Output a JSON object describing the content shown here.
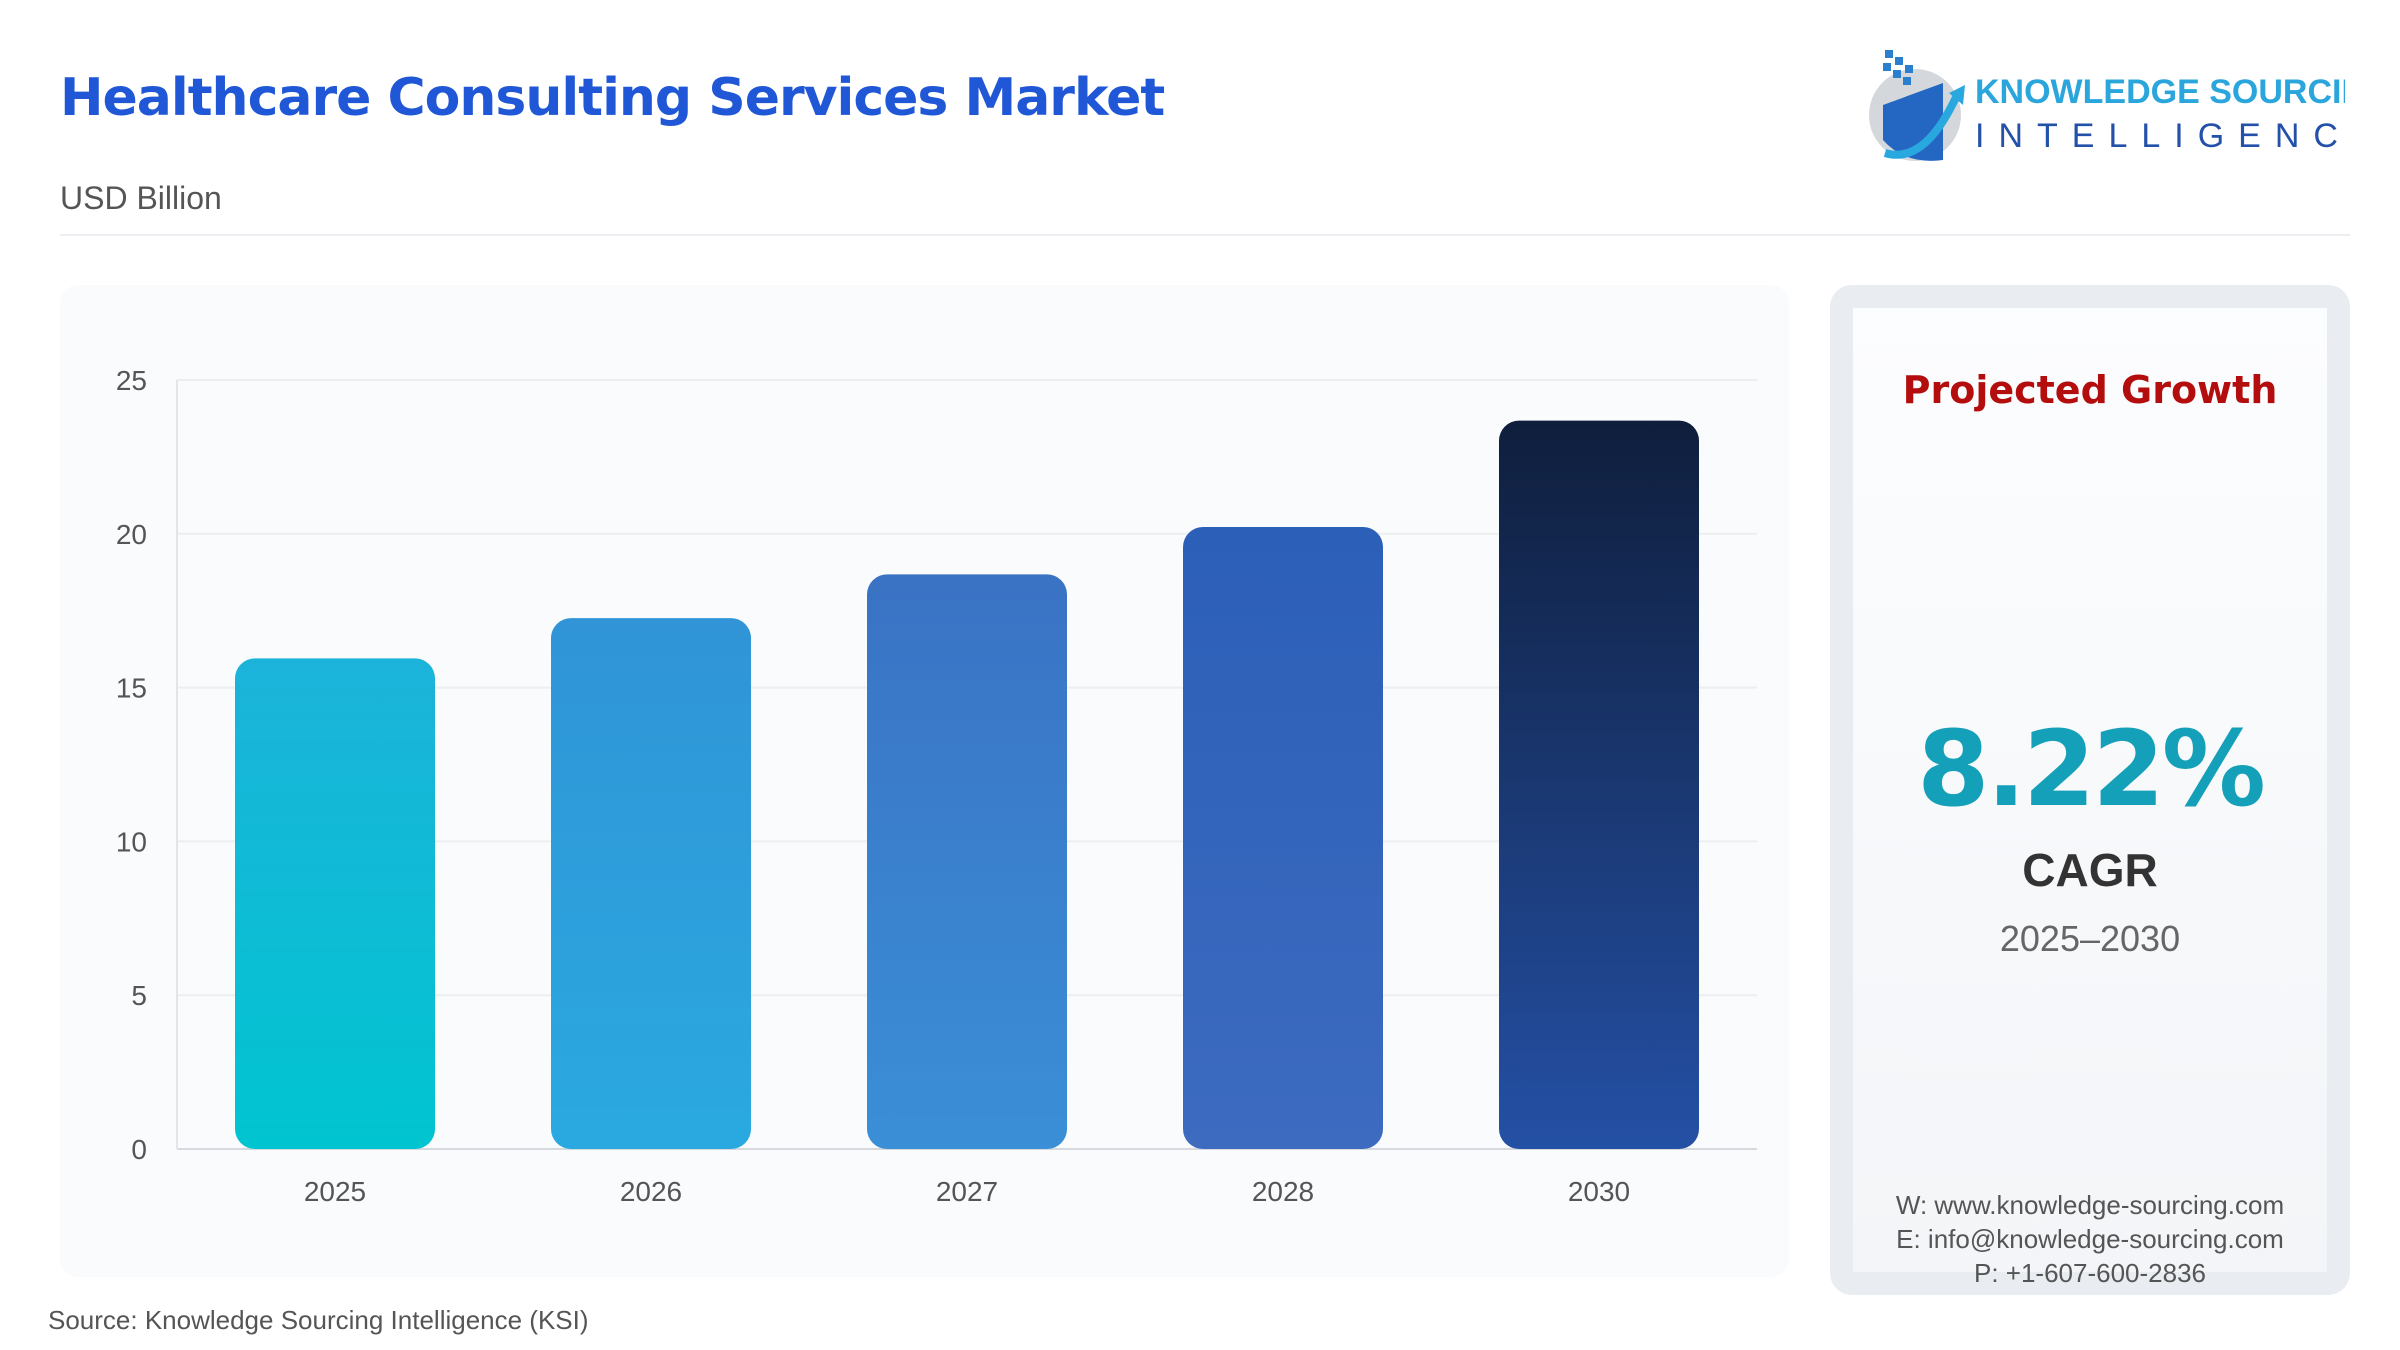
{
  "header": {
    "title": "Healthcare Consulting Services Market",
    "subtitle": "USD Billion"
  },
  "logo": {
    "line1": "KNOWLEDGE SOURCING",
    "line2": "INTELLIGENCE"
  },
  "chart_data": {
    "type": "bar",
    "categories": [
      "2025",
      "2026",
      "2027",
      "2028",
      "2030"
    ],
    "values": [
      15.95,
      17.26,
      18.68,
      20.22,
      23.68
    ],
    "ylim": [
      0,
      25
    ],
    "yticks": [
      0,
      5,
      10,
      15,
      20,
      25
    ],
    "grid": true,
    "xlabel": "",
    "ylabel": "",
    "colors": [
      [
        "#00c4d0",
        "#1cb3da"
      ],
      [
        "#2aa9e0",
        "#3094d6"
      ],
      [
        "#3a8fd6",
        "#3a72c4"
      ],
      [
        "#3c6bc0",
        "#2c5fb8"
      ],
      [
        "#2450a5",
        "#0f1e3c"
      ]
    ]
  },
  "panel": {
    "heading": "Projected Growth",
    "value": "8.22%",
    "label": "CAGR",
    "period": "2025–2030",
    "contacts": [
      "W: www.knowledge-sourcing.com",
      "E: info@knowledge-sourcing.com",
      "P: +1-607-600-2836"
    ]
  },
  "footer": {
    "source": "Source: Knowledge Sourcing Intelligence (KSI)"
  }
}
